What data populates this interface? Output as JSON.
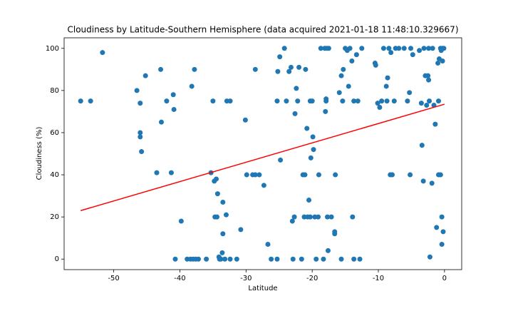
{
  "chart_data": {
    "type": "scatter",
    "title": "Cloudiness by Latitude-Southern Hemisphere (data acquired 2021-01-18 11:48:10.329667)",
    "x_label": "Latitude",
    "y_label": "Cloudiness (%)",
    "xlim": [
      -57.5,
      2.6
    ],
    "ylim": [
      -5,
      105
    ],
    "xticks": [
      -50,
      -40,
      -30,
      -20,
      -10,
      0
    ],
    "yticks": [
      0,
      20,
      40,
      60,
      80,
      100
    ],
    "grid": false,
    "series": [
      {
        "type": "scatter",
        "color": "#1f77b4",
        "x": [
          -55,
          -53.5,
          -51.7,
          -46.5,
          -46,
          -46,
          -46,
          -45.8,
          -45.2,
          -43.5,
          -42.9,
          -42.8,
          -42,
          -41.3,
          -41,
          -40.9,
          -40.7,
          -39.8,
          -38.9,
          -38.4,
          -38.2,
          -38,
          -37.8,
          -37.6,
          -37.2,
          -36,
          -35.3,
          -35,
          -34.8,
          -34.7,
          -34.5,
          -34.4,
          -34.3,
          -34.1,
          -34,
          -33.8,
          -33.6,
          -33.5,
          -33.5,
          -33.2,
          -32.9,
          -33,
          -32.4,
          -32.4,
          -31.4,
          -30.8,
          -30.1,
          -29.9,
          -29,
          -28.6,
          -28.6,
          -28,
          -27.3,
          -26.7,
          -26.2,
          -25.3,
          -25.3,
          -25.2,
          -24.9,
          -24.8,
          -24.2,
          -23.9,
          -23.5,
          -23.2,
          -23,
          -22.9,
          -22.7,
          -22.6,
          -22.4,
          -22.2,
          -22,
          -21.6,
          -21.4,
          -21.2,
          -21,
          -21.1,
          -20.8,
          -20.7,
          -20.5,
          -20.3,
          -20.3,
          -20.2,
          -20,
          -19.9,
          -19.8,
          -19.6,
          -19.4,
          -19.1,
          -19,
          -18.7,
          -18.3,
          -18.1,
          -18,
          -17.9,
          -17.9,
          -17.8,
          -17.7,
          -17.6,
          -17.5,
          -17.1,
          -16.6,
          -16.6,
          -16.5,
          -15.9,
          -15.6,
          -15.6,
          -15.4,
          -15.3,
          -15,
          -14.7,
          -14.5,
          -14.3,
          -14,
          -13.9,
          -13.7,
          -13.7,
          -13.3,
          -13.1,
          -12.8,
          -12.5,
          -10.5,
          -10.4,
          -10.1,
          -9.8,
          -9.5,
          -9.2,
          -8.8,
          -8.7,
          -8.6,
          -8.4,
          -8.2,
          -8.1,
          -7.9,
          -7.6,
          -7.4,
          -6.9,
          -6.1,
          -5.6,
          -5.3,
          -5.2,
          -5.1,
          -4.8,
          -3.8,
          -3.5,
          -3.4,
          -3.2,
          -3.1,
          -2.9,
          -2.7,
          -2.5,
          -2.4,
          -2.4,
          -2.3,
          -2.2,
          -1.9,
          -1.8,
          -1.6,
          -1.4,
          -1.2,
          -1,
          -0.9,
          -0.9,
          -0.8,
          -0.6,
          -0.6,
          -0.5,
          -0.4,
          -0.4,
          -0.3,
          -0.3,
          -0.2,
          -0.1
        ],
        "values": [
          75,
          75,
          98,
          80,
          74,
          60,
          58,
          51,
          87,
          41,
          90,
          65,
          75,
          41,
          78,
          71,
          0,
          18,
          0,
          0,
          82,
          0,
          90,
          0,
          0,
          0,
          41,
          75,
          37,
          20,
          38,
          20,
          31,
          1,
          0,
          0,
          3,
          27,
          12,
          0,
          75,
          21,
          75,
          0,
          0,
          14,
          66,
          40,
          40,
          90,
          40,
          40,
          35,
          7,
          0,
          0,
          75,
          89,
          96,
          47,
          100,
          75,
          89,
          91,
          18,
          0,
          20,
          69,
          81,
          75,
          91,
          0,
          40,
          20,
          90,
          40,
          62,
          20,
          28,
          75,
          20,
          48,
          75,
          58,
          52,
          20,
          0,
          20,
          40,
          100,
          0,
          100,
          70,
          76,
          75,
          100,
          20,
          4,
          100,
          20,
          13,
          12,
          40,
          79,
          0,
          87,
          75,
          90,
          100,
          99,
          82,
          100,
          94,
          20,
          75,
          0,
          97,
          75,
          0,
          100,
          93,
          92,
          74,
          72,
          75,
          100,
          82,
          75,
          86,
          100,
          40,
          98,
          40,
          75,
          100,
          100,
          100,
          75,
          79,
          40,
          100,
          97,
          99,
          74,
          54,
          37,
          100,
          87,
          73,
          87,
          85,
          100,
          75,
          1,
          36,
          100,
          73,
          64,
          15,
          93,
          40,
          75,
          95,
          100,
          40,
          99,
          20,
          7,
          94,
          100,
          13,
          100
        ]
      },
      {
        "type": "line",
        "color": "#ff0000",
        "x": [
          -55,
          0
        ],
        "values": [
          23,
          73.5
        ]
      }
    ]
  }
}
